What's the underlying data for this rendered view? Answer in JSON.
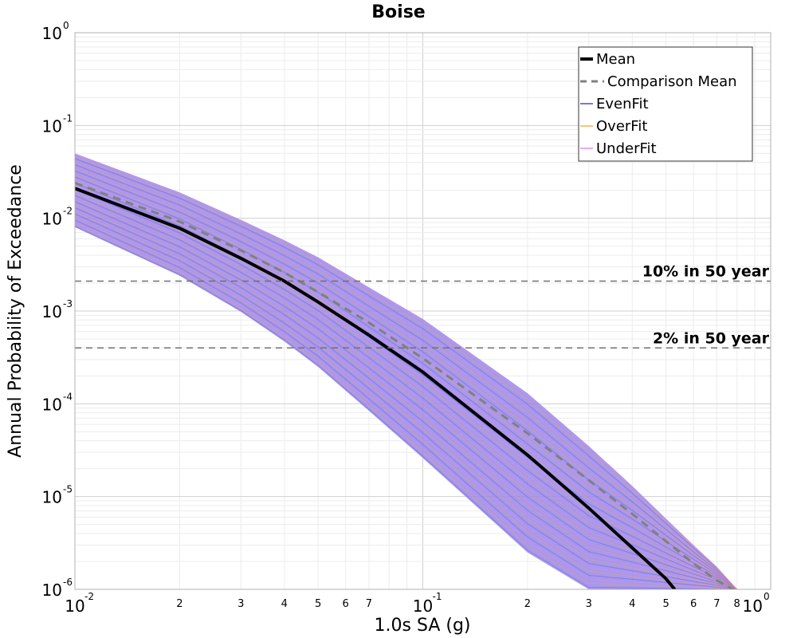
{
  "chart_data": {
    "type": "line",
    "title": "Boise",
    "xlabel": "1.0s SA (g)",
    "ylabel": "Annual Probability of Exceedance",
    "xscale": "log",
    "yscale": "log",
    "xlim": [
      0.01,
      1.0
    ],
    "ylim": [
      1e-06,
      1.0
    ],
    "grid": true,
    "legend_position": "top-right",
    "x_major_ticks": [
      {
        "base": "10",
        "exp": "-2"
      },
      {
        "base": "10",
        "exp": "-1"
      },
      {
        "base": "10",
        "exp": "0"
      }
    ],
    "y_major_ticks": [
      {
        "base": "10",
        "exp": "0"
      },
      {
        "base": "10",
        "exp": "-1"
      },
      {
        "base": "10",
        "exp": "-2"
      },
      {
        "base": "10",
        "exp": "-3"
      },
      {
        "base": "10",
        "exp": "-4"
      },
      {
        "base": "10",
        "exp": "-5"
      },
      {
        "base": "10",
        "exp": "-6"
      }
    ],
    "x_minor_tick_labels": [
      "2",
      "3",
      "4",
      "5",
      "6",
      "7",
      "2",
      "3",
      "4",
      "5",
      "6",
      "7",
      "8"
    ],
    "x_minor_tick_values": [
      0.02,
      0.03,
      0.04,
      0.05,
      0.06,
      0.07,
      0.2,
      0.3,
      0.4,
      0.5,
      0.6,
      0.7,
      0.8
    ],
    "series": [
      {
        "name": "Mean",
        "style": "solid",
        "color": "#000000",
        "x": [
          0.01,
          0.02,
          0.03,
          0.04,
          0.05,
          0.07,
          0.1,
          0.2,
          0.3,
          0.4,
          0.5,
          0.53
        ],
        "y": [
          0.021,
          0.0078,
          0.0037,
          0.0021,
          0.00125,
          0.00055,
          0.00022,
          2.8e-05,
          7.5e-06,
          2.8e-06,
          1.3e-06,
          1e-06
        ]
      },
      {
        "name": "Comparison Mean",
        "style": "dashed",
        "color": "#808080",
        "x": [
          0.01,
          0.02,
          0.03,
          0.04,
          0.05,
          0.07,
          0.1,
          0.2,
          0.3,
          0.4,
          0.5,
          0.6,
          0.7,
          0.78
        ],
        "y": [
          0.024,
          0.0092,
          0.0045,
          0.0026,
          0.0016,
          0.00075,
          0.00031,
          4.8e-05,
          1.5e-05,
          6.5e-06,
          3.3e-06,
          1.9e-06,
          1.25e-06,
          1e-06
        ]
      }
    ],
    "fit_groups": [
      {
        "name": "EvenFit",
        "color": "#3b4de0"
      },
      {
        "name": "OverFit",
        "color": "#f2b24a"
      },
      {
        "name": "UnderFit",
        "color": "#f08ae6"
      }
    ],
    "ensemble_band": {
      "x": [
        0.01,
        0.02,
        0.03,
        0.04,
        0.05,
        0.07,
        0.1,
        0.2,
        0.3,
        0.4,
        0.5,
        0.6,
        0.7,
        0.8
      ],
      "upper": [
        0.05,
        0.019,
        0.0096,
        0.0058,
        0.0038,
        0.0018,
        0.00082,
        0.00013,
        3.5e-05,
        1.3e-05,
        5.8e-06,
        3e-06,
        1.75e-06,
        1e-06
      ],
      "lower": [
        0.008,
        0.0024,
        0.00098,
        0.00047,
        0.00025,
        8.4e-05,
        2.6e-05,
        2.5e-06,
        1e-06,
        1e-06,
        1e-06,
        1e-06,
        1e-06,
        1e-06
      ],
      "base_color": "#9a86e8"
    },
    "reference_lines": [
      {
        "label": "10% in 50 year",
        "y": 0.0021
      },
      {
        "label": "2% in 50 year",
        "y": 0.0004
      }
    ]
  }
}
